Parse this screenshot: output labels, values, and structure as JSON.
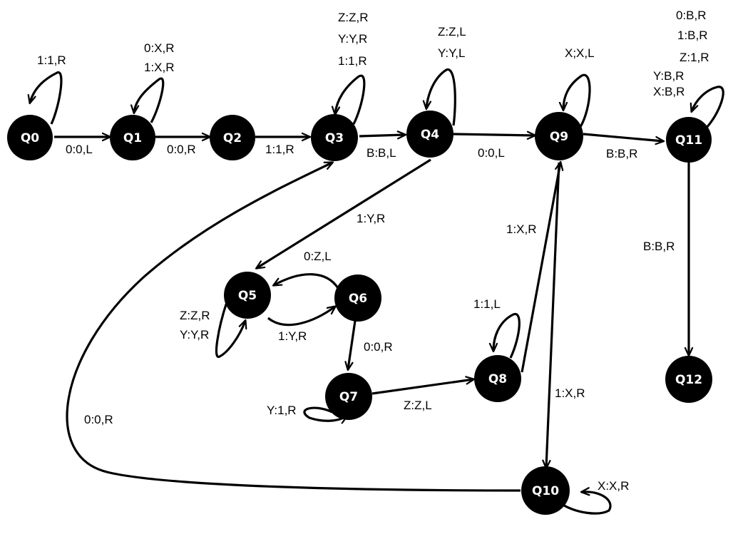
{
  "colors": {
    "state_fill": "#000000",
    "state_text": "#ffffff",
    "edge": "#000000",
    "background": "#ffffff"
  },
  "states": {
    "q0": "Q0",
    "q1": "Q1",
    "q2": "Q2",
    "q3": "Q3",
    "q4": "Q4",
    "q5": "Q5",
    "q6": "Q6",
    "q7": "Q7",
    "q8": "Q8",
    "q9": "Q9",
    "q10": "Q10",
    "q11": "Q11",
    "q12": "Q12"
  },
  "transitions": {
    "q0_self": "1:1,R",
    "q0_q1": "0:0,L",
    "q1_self_1": "0:X,R",
    "q1_self_2": "1:X,R",
    "q1_q2": "0:0,R",
    "q2_q3": "1:1,R",
    "q3_self_1": "Z:Z,R",
    "q3_self_2": "Y:Y,R",
    "q3_self_3": "1:1,R",
    "q3_q4": "B:B,L",
    "q4_self_1": "Z:Z,L",
    "q4_self_2": "Y:Y,L",
    "q4_q9": "0:0,L",
    "q4_q5": "1:Y,R",
    "q9_self": "X;X,L",
    "q9_q11": "B:B,R",
    "q11_self_1": "0:B,R",
    "q11_self_2": "1:B,R",
    "q11_self_3": "Z:1,R",
    "q11_self_4": "Y:B,R",
    "q11_self_5": "X:B,R",
    "q11_q12": "B:B,R",
    "q6_q5": "0:Z,L",
    "q5_q6": "1:Y,R",
    "q5_self_1": "Z:Z,R",
    "q5_self_2": "Y:Y,R",
    "q6_q7": "0:0,R",
    "q7_self": "Y:1,R",
    "q7_q8": "Z:Z,L",
    "q8_self": "1:1,L",
    "q8_q9": "1:X,R",
    "q9_q10": "1:X,R",
    "q10_self": "X:X,R",
    "q10_q3": "0:0,R"
  }
}
